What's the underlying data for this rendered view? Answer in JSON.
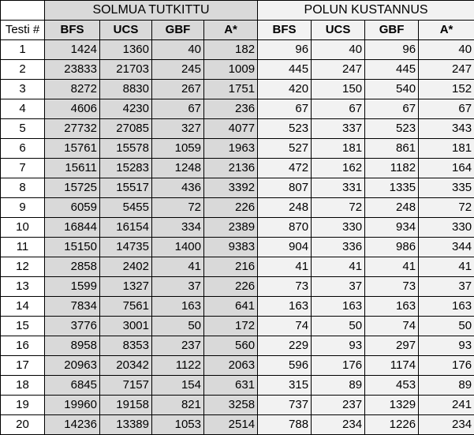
{
  "group_headers": {
    "nodes": "SOLMUA TUTKITTU",
    "cost": "POLUN KUSTANNUS"
  },
  "columns": {
    "test": "Testi #",
    "nodes": [
      "BFS",
      "UCS",
      "GBF",
      "A*"
    ],
    "cost": [
      "BFS",
      "UCS",
      "GBF",
      "A*"
    ]
  },
  "rows": [
    {
      "test": "1",
      "nodes": [
        "1424",
        "1360",
        "40",
        "182"
      ],
      "cost": [
        "96",
        "40",
        "96",
        "40"
      ]
    },
    {
      "test": "2",
      "nodes": [
        "23833",
        "21703",
        "245",
        "1009"
      ],
      "cost": [
        "445",
        "247",
        "445",
        "247"
      ]
    },
    {
      "test": "3",
      "nodes": [
        "8272",
        "8830",
        "267",
        "1751"
      ],
      "cost": [
        "420",
        "150",
        "540",
        "152"
      ]
    },
    {
      "test": "4",
      "nodes": [
        "4606",
        "4230",
        "67",
        "236"
      ],
      "cost": [
        "67",
        "67",
        "67",
        "67"
      ]
    },
    {
      "test": "5",
      "nodes": [
        "27732",
        "27085",
        "327",
        "4077"
      ],
      "cost": [
        "523",
        "337",
        "523",
        "343"
      ]
    },
    {
      "test": "6",
      "nodes": [
        "15761",
        "15578",
        "1059",
        "1963"
      ],
      "cost": [
        "527",
        "181",
        "861",
        "181"
      ]
    },
    {
      "test": "7",
      "nodes": [
        "15611",
        "15283",
        "1248",
        "2136"
      ],
      "cost": [
        "472",
        "162",
        "1182",
        "164"
      ]
    },
    {
      "test": "8",
      "nodes": [
        "15725",
        "15517",
        "436",
        "3392"
      ],
      "cost": [
        "807",
        "331",
        "1335",
        "335"
      ]
    },
    {
      "test": "9",
      "nodes": [
        "6059",
        "5455",
        "72",
        "226"
      ],
      "cost": [
        "248",
        "72",
        "248",
        "72"
      ]
    },
    {
      "test": "10",
      "nodes": [
        "16844",
        "16154",
        "334",
        "2389"
      ],
      "cost": [
        "870",
        "330",
        "934",
        "330"
      ]
    },
    {
      "test": "11",
      "nodes": [
        "15150",
        "14735",
        "1400",
        "9383"
      ],
      "cost": [
        "904",
        "336",
        "986",
        "344"
      ]
    },
    {
      "test": "12",
      "nodes": [
        "2858",
        "2402",
        "41",
        "216"
      ],
      "cost": [
        "41",
        "41",
        "41",
        "41"
      ]
    },
    {
      "test": "13",
      "nodes": [
        "1599",
        "1327",
        "37",
        "226"
      ],
      "cost": [
        "73",
        "37",
        "73",
        "37"
      ]
    },
    {
      "test": "14",
      "nodes": [
        "7834",
        "7561",
        "163",
        "641"
      ],
      "cost": [
        "163",
        "163",
        "163",
        "163"
      ]
    },
    {
      "test": "15",
      "nodes": [
        "3776",
        "3001",
        "50",
        "172"
      ],
      "cost": [
        "74",
        "50",
        "74",
        "50"
      ]
    },
    {
      "test": "16",
      "nodes": [
        "8958",
        "8353",
        "237",
        "560"
      ],
      "cost": [
        "229",
        "93",
        "297",
        "93"
      ]
    },
    {
      "test": "17",
      "nodes": [
        "20963",
        "20342",
        "1122",
        "2063"
      ],
      "cost": [
        "596",
        "176",
        "1174",
        "176"
      ]
    },
    {
      "test": "18",
      "nodes": [
        "6845",
        "7157",
        "154",
        "631"
      ],
      "cost": [
        "315",
        "89",
        "453",
        "89"
      ]
    },
    {
      "test": "19",
      "nodes": [
        "19960",
        "19158",
        "821",
        "3258"
      ],
      "cost": [
        "737",
        "237",
        "1329",
        "241"
      ]
    },
    {
      "test": "20",
      "nodes": [
        "14236",
        "13389",
        "1053",
        "2514"
      ],
      "cost": [
        "788",
        "234",
        "1226",
        "234"
      ]
    }
  ]
}
